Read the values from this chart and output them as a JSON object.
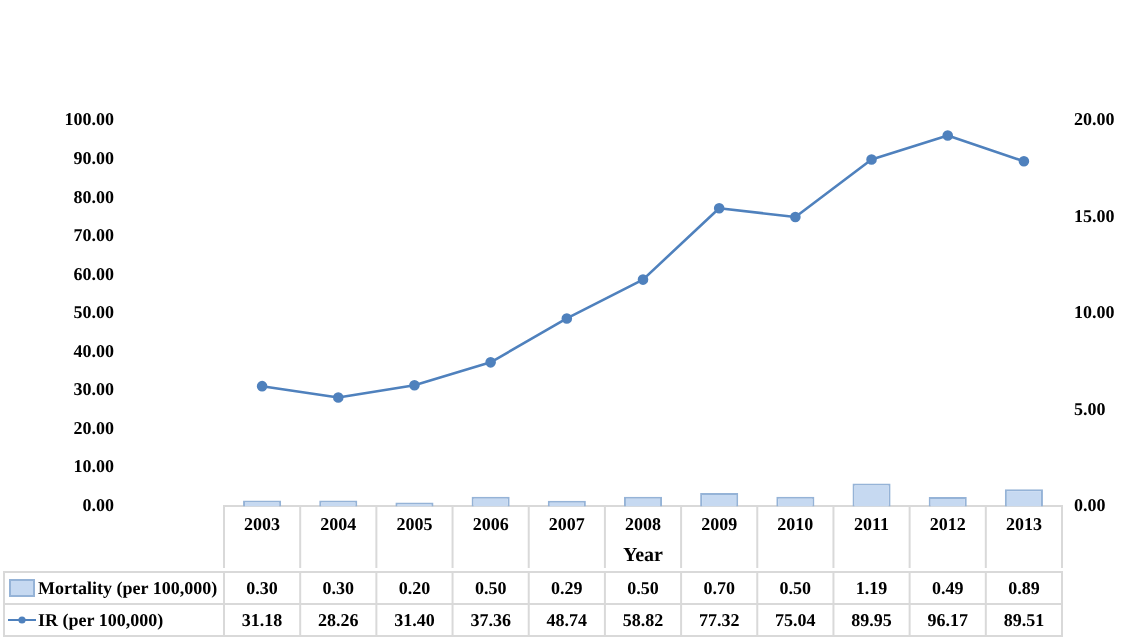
{
  "chart_data": {
    "type": "bar",
    "xlabel": "Year",
    "categories": [
      "2003",
      "2004",
      "2005",
      "2006",
      "2007",
      "2008",
      "2009",
      "2010",
      "2011",
      "2012",
      "2013"
    ],
    "series": [
      {
        "name": "Mortality (per 100,000)",
        "axis": "y2",
        "color": "#c6d9f1",
        "values": [
          0.3,
          0.3,
          0.2,
          0.5,
          0.29,
          0.5,
          0.7,
          0.5,
          1.19,
          0.49,
          0.89
        ],
        "value_labels": [
          "0.30",
          "0.30",
          "0.20",
          "0.50",
          "0.29",
          "0.50",
          "0.70",
          "0.50",
          "1.19",
          "0.49",
          "0.89"
        ]
      },
      {
        "name": "IR (per 100,000)",
        "type": "line",
        "color": "#4f81bd",
        "values": [
          31.18,
          28.26,
          31.4,
          37.36,
          48.74,
          58.82,
          77.32,
          75.04,
          89.95,
          96.17,
          89.51
        ],
        "value_labels": [
          "31.18",
          "28.26",
          "31.40",
          "37.36",
          "48.74",
          "58.82",
          "77.32",
          "75.04",
          "89.95",
          "96.17",
          "89.51"
        ]
      }
    ],
    "ylim": [
      0,
      100
    ],
    "yticks": [
      {
        "value": 0,
        "label": "0.00"
      },
      {
        "value": 10,
        "label": "10.00"
      },
      {
        "value": 20,
        "label": "20.00"
      },
      {
        "value": 30,
        "label": "30.00"
      },
      {
        "value": 40,
        "label": "40.00"
      },
      {
        "value": 50,
        "label": "50.00"
      },
      {
        "value": 60,
        "label": "60.00"
      },
      {
        "value": 70,
        "label": "70.00"
      },
      {
        "value": 80,
        "label": "80.00"
      },
      {
        "value": 90,
        "label": "90.00"
      },
      {
        "value": 100,
        "label": "100.00"
      }
    ],
    "y2lim": [
      0,
      20
    ],
    "y2ticks": [
      {
        "value": 0,
        "label": "0.00"
      },
      {
        "value": 5,
        "label": "5.00"
      },
      {
        "value": 10,
        "label": "10.00"
      },
      {
        "value": 15,
        "label": "15.00"
      },
      {
        "value": 20,
        "label": "20.00"
      }
    ],
    "grid": false,
    "legend": "bottom",
    "marker": "circle",
    "line_style": "solid"
  }
}
